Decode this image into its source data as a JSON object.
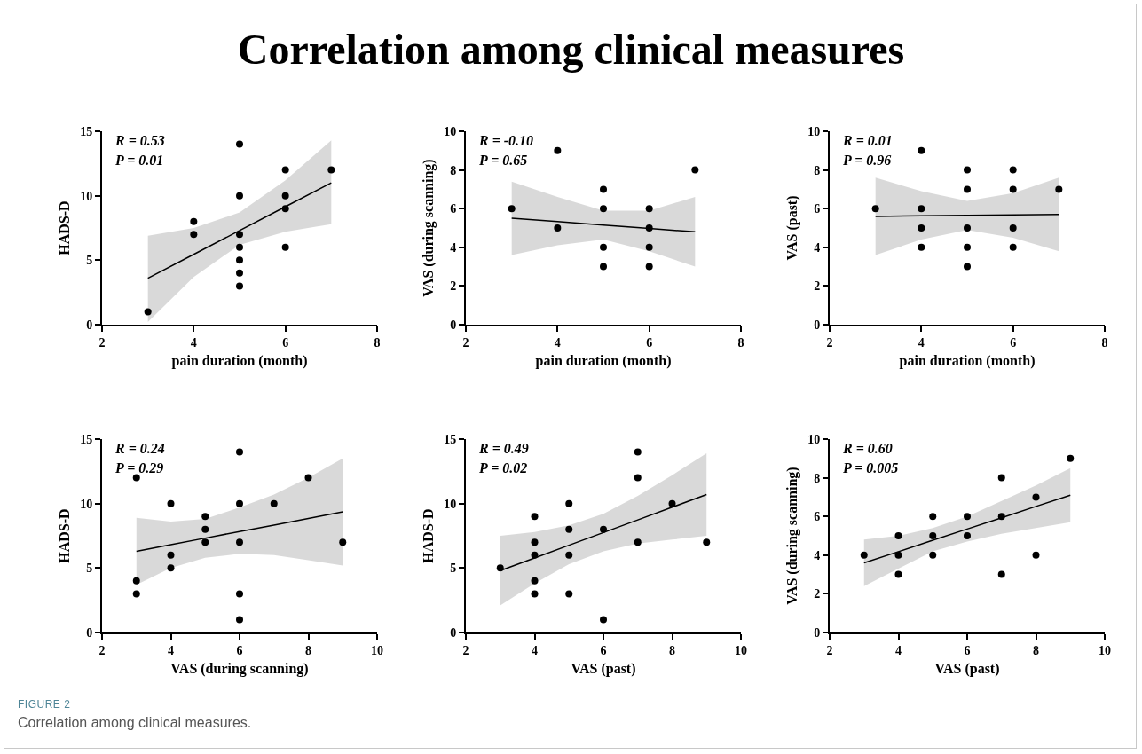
{
  "chart_data": [
    {
      "type": "scatter",
      "title": "Correlation among clinical measures",
      "xlabel": "pain duration (month)",
      "ylabel": "HADS-D",
      "xlim": [
        2,
        8
      ],
      "xticks": [
        2,
        4,
        6,
        8
      ],
      "ylim": [
        0,
        15
      ],
      "yticks": [
        0,
        5,
        10,
        15
      ],
      "grid": false,
      "annotations": [
        "R = 0.53",
        "P = 0.01"
      ],
      "series": [
        {
          "type": "line",
          "color": "#000000",
          "line_style": "solid",
          "x": [
            3,
            4,
            5,
            6,
            7
          ],
          "values": [
            3.6,
            5.45,
            7.3,
            9.15,
            11.0
          ],
          "lower": [
            0.2,
            3.7,
            6.2,
            7.2,
            7.8
          ],
          "upper": [
            6.9,
            7.5,
            8.7,
            11.2,
            14.3
          ]
        },
        {
          "type": "scatter",
          "color": "#000000",
          "marker": "circle",
          "x": [
            3,
            4,
            4,
            5,
            5,
            5,
            5,
            5,
            5,
            5,
            6,
            6,
            6,
            6,
            7
          ],
          "values": [
            1,
            8,
            7,
            14,
            10,
            7,
            6,
            5,
            4,
            3,
            12,
            10,
            9,
            6,
            12
          ]
        }
      ]
    },
    {
      "type": "scatter",
      "xlabel": "pain duration (month)",
      "ylabel": "VAS (during scanning)",
      "xlim": [
        2,
        8
      ],
      "xticks": [
        2,
        4,
        6,
        8
      ],
      "ylim": [
        0,
        10
      ],
      "yticks": [
        0,
        2,
        4,
        6,
        8,
        10
      ],
      "grid": false,
      "annotations": [
        "R = -0.10",
        "P = 0.65"
      ],
      "series": [
        {
          "type": "line",
          "color": "#000000",
          "line_style": "solid",
          "x": [
            3,
            4,
            5,
            6,
            7
          ],
          "values": [
            5.5,
            5.33,
            5.15,
            4.98,
            4.8
          ],
          "lower": [
            3.6,
            4.1,
            4.4,
            3.8,
            3.0
          ],
          "upper": [
            7.4,
            6.6,
            5.9,
            5.9,
            6.6
          ]
        },
        {
          "type": "scatter",
          "color": "#000000",
          "marker": "circle",
          "x": [
            3,
            4,
            4,
            5,
            5,
            5,
            5,
            6,
            6,
            6,
            6,
            7
          ],
          "values": [
            6,
            9,
            5,
            7,
            6,
            4,
            3,
            6,
            5,
            4,
            3,
            8
          ]
        }
      ]
    },
    {
      "type": "scatter",
      "xlabel": "pain duration (month)",
      "ylabel": "VAS (past)",
      "xlim": [
        2,
        8
      ],
      "xticks": [
        2,
        4,
        6,
        8
      ],
      "ylim": [
        0,
        10
      ],
      "yticks": [
        0,
        2,
        4,
        6,
        8,
        10
      ],
      "grid": false,
      "annotations": [
        "R = 0.01",
        "P = 0.96"
      ],
      "series": [
        {
          "type": "line",
          "color": "#000000",
          "line_style": "solid",
          "x": [
            3,
            4,
            5,
            6,
            7
          ],
          "values": [
            5.6,
            5.63,
            5.65,
            5.68,
            5.7
          ],
          "lower": [
            3.6,
            4.4,
            4.9,
            4.5,
            3.8
          ],
          "upper": [
            7.6,
            6.9,
            6.4,
            6.8,
            7.6
          ]
        },
        {
          "type": "scatter",
          "color": "#000000",
          "marker": "circle",
          "x": [
            3,
            4,
            4,
            4,
            4,
            5,
            5,
            5,
            5,
            5,
            6,
            6,
            6,
            6,
            7
          ],
          "values": [
            6,
            9,
            6,
            5,
            4,
            8,
            7,
            5,
            4,
            3,
            8,
            7,
            5,
            4,
            7
          ]
        }
      ]
    },
    {
      "type": "scatter",
      "xlabel": "VAS (during scanning)",
      "ylabel": "HADS-D",
      "xlim": [
        2,
        10
      ],
      "xticks": [
        2,
        4,
        6,
        8,
        10
      ],
      "ylim": [
        0,
        15
      ],
      "yticks": [
        0,
        5,
        10,
        15
      ],
      "grid": false,
      "annotations": [
        "R = 0.24",
        "P = 0.29"
      ],
      "series": [
        {
          "type": "line",
          "color": "#000000",
          "line_style": "solid",
          "x": [
            3,
            4,
            5,
            6,
            7,
            8,
            9
          ],
          "values": [
            6.3,
            6.81,
            7.32,
            7.83,
            8.33,
            8.84,
            9.35
          ],
          "lower": [
            3.7,
            5.0,
            5.8,
            6.1,
            6.0,
            5.6,
            5.2
          ],
          "upper": [
            8.9,
            8.6,
            8.8,
            9.7,
            10.7,
            12.0,
            13.5
          ]
        },
        {
          "type": "scatter",
          "color": "#000000",
          "marker": "circle",
          "x": [
            3,
            3,
            3,
            4,
            4,
            4,
            5,
            5,
            5,
            6,
            6,
            6,
            6,
            6,
            7,
            8,
            9
          ],
          "values": [
            12,
            4,
            3,
            10,
            6,
            5,
            9,
            8,
            7,
            14,
            10,
            7,
            3,
            1,
            10,
            12,
            7
          ]
        }
      ]
    },
    {
      "type": "scatter",
      "xlabel": "VAS (past)",
      "ylabel": "HADS-D",
      "xlim": [
        2,
        10
      ],
      "xticks": [
        2,
        4,
        6,
        8,
        10
      ],
      "ylim": [
        0,
        15
      ],
      "yticks": [
        0,
        5,
        10,
        15
      ],
      "grid": false,
      "annotations": [
        "R = 0.49",
        "P = 0.02"
      ],
      "series": [
        {
          "type": "line",
          "color": "#000000",
          "line_style": "solid",
          "x": [
            3,
            4,
            5,
            6,
            7,
            8,
            9
          ],
          "values": [
            4.8,
            5.78,
            6.77,
            7.75,
            8.73,
            9.72,
            10.7
          ],
          "lower": [
            2.1,
            3.8,
            5.3,
            6.3,
            6.9,
            7.2,
            7.5
          ],
          "upper": [
            7.5,
            7.8,
            8.3,
            9.2,
            10.6,
            12.2,
            13.9
          ]
        },
        {
          "type": "scatter",
          "color": "#000000",
          "marker": "circle",
          "x": [
            3,
            4,
            4,
            4,
            4,
            4,
            5,
            5,
            5,
            5,
            6,
            6,
            7,
            7,
            7,
            8,
            9
          ],
          "values": [
            5,
            9,
            7,
            6,
            4,
            3,
            10,
            8,
            6,
            3,
            8,
            1,
            14,
            12,
            7,
            10,
            7
          ]
        }
      ]
    },
    {
      "type": "scatter",
      "xlabel": "VAS (past)",
      "ylabel": "VAS (during scanning)",
      "xlim": [
        2,
        10
      ],
      "xticks": [
        2,
        4,
        6,
        8,
        10
      ],
      "ylim": [
        0,
        10
      ],
      "yticks": [
        0,
        2,
        4,
        6,
        8,
        10
      ],
      "grid": false,
      "annotations": [
        "R = 0.60",
        "P = 0.005",
        "FIGURE 2",
        "Correlation among clinical measures."
      ],
      "series": [
        {
          "type": "line",
          "color": "#000000",
          "line_style": "solid",
          "x": [
            3,
            4,
            5,
            6,
            7,
            8,
            9
          ],
          "values": [
            3.6,
            4.18,
            4.77,
            5.35,
            5.93,
            6.52,
            7.1
          ],
          "lower": [
            2.4,
            3.3,
            4.2,
            4.7,
            5.1,
            5.4,
            5.7
          ],
          "upper": [
            4.8,
            5.0,
            5.4,
            6.0,
            6.8,
            7.6,
            8.5
          ]
        },
        {
          "type": "scatter",
          "color": "#000000",
          "marker": "circle",
          "x": [
            3,
            4,
            4,
            4,
            5,
            5,
            5,
            6,
            6,
            7,
            7,
            7,
            8,
            8,
            9
          ],
          "values": [
            4,
            5,
            4,
            3,
            6,
            5,
            4,
            6,
            5,
            8,
            6,
            3,
            7,
            4,
            9
          ]
        }
      ]
    }
  ]
}
